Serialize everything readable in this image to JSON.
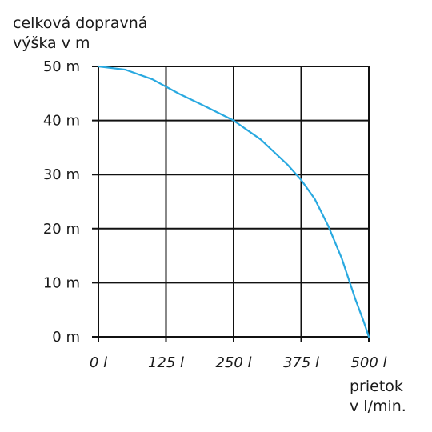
{
  "chart_data": {
    "type": "line",
    "ylabel": [
      "celková dopravná",
      "výška v m"
    ],
    "xlabel": [
      "prietok",
      "v l/min."
    ],
    "x_ticks": [
      "0 l",
      "125 l",
      "250 l",
      "375 l",
      "500 l"
    ],
    "y_ticks": [
      "0 m",
      "10 m",
      "20 m",
      "30 m",
      "40 m",
      "50 m"
    ],
    "xlim": [
      0,
      500
    ],
    "ylim": [
      0,
      50
    ],
    "grid": true,
    "series": [
      {
        "color": "#29a9e0",
        "x": [
          0,
          50,
          100,
          150,
          200,
          250,
          300,
          350,
          375,
          400,
          425,
          450,
          475,
          490,
          500
        ],
        "y": [
          50,
          49.4,
          47.6,
          44.9,
          42.5,
          40,
          36.5,
          31.8,
          29,
          25.5,
          20.5,
          14.5,
          7,
          3,
          0
        ]
      }
    ]
  }
}
